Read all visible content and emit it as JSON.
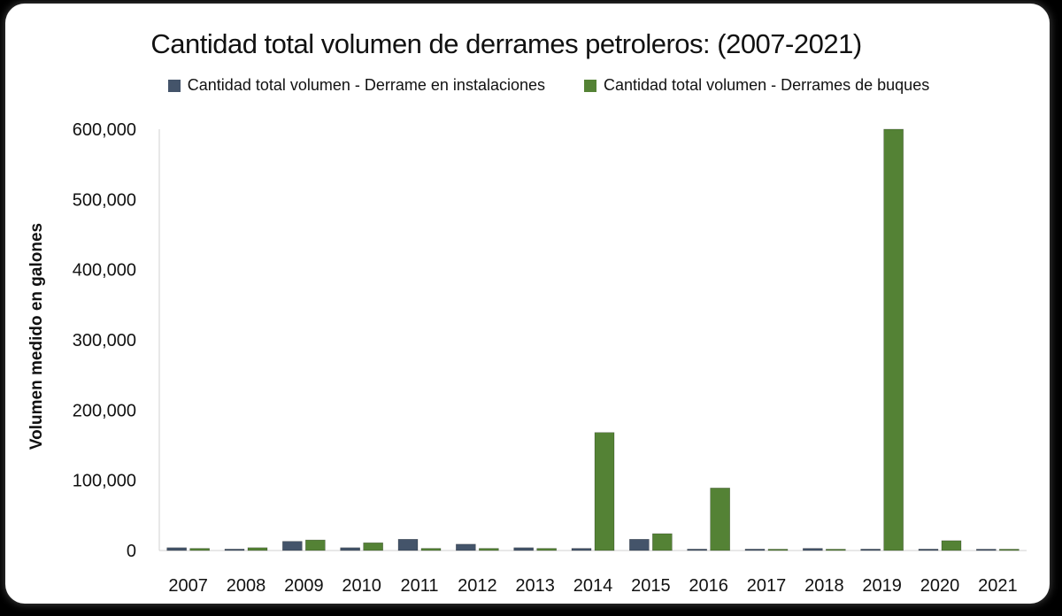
{
  "chart_data": {
    "type": "bar",
    "title": "Cantidad total volumen de derrames petroleros: (2007-2021)",
    "ylabel": "Volumen medido en galones",
    "xlabel": "",
    "categories": [
      "2007",
      "2008",
      "2009",
      "2010",
      "2011",
      "2012",
      "2013",
      "2014",
      "2015",
      "2016",
      "2017",
      "2018",
      "2019",
      "2020",
      "2021"
    ],
    "series": [
      {
        "name": "Cantidad total volumen - Derrame en instalaciones",
        "color": "#44546a",
        "values": [
          4000,
          2000,
          13000,
          4000,
          16000,
          9000,
          4000,
          3000,
          16000,
          2000,
          2000,
          3000,
          2000,
          2000,
          1500
        ]
      },
      {
        "name": "Cantidad total volumen  - Derrames de buques",
        "color": "#548235",
        "values": [
          3000,
          4000,
          15000,
          11000,
          3000,
          3000,
          3000,
          168000,
          24000,
          89000,
          1000,
          500,
          600000,
          14000,
          1000
        ]
      }
    ],
    "ylim": [
      0,
      600000
    ],
    "yticks": [
      0,
      100000,
      200000,
      300000,
      400000,
      500000,
      600000
    ],
    "ytick_labels": [
      "0",
      "100,000",
      "200,000",
      "300,000",
      "400,000",
      "500,000",
      "600,000"
    ],
    "grid": false,
    "legend_position": "top"
  }
}
